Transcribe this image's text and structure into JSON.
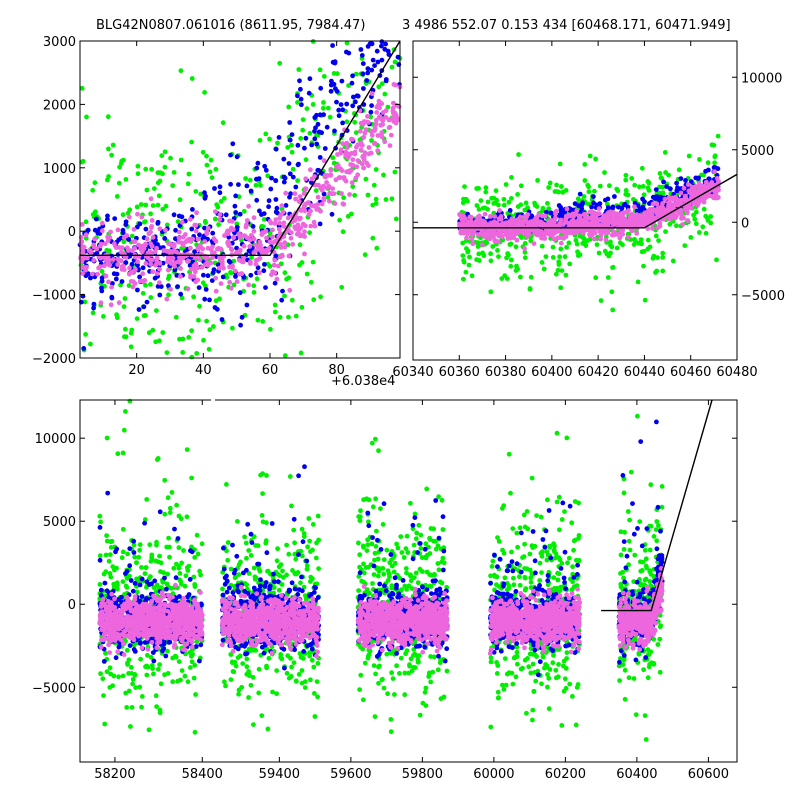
{
  "panel_left": {
    "title": "BLG42N0807.061016 (8611.95, 7984.47)",
    "offset_label": "+6.038e4"
  },
  "panel_right": {
    "title": "3 4986 552.07 0.153 434 [60468.171, 60471.949]"
  },
  "colors": {
    "blue": "#0000ee",
    "green": "#00ee00",
    "pink": "#ee66dd",
    "model": "#000000"
  },
  "chart_data": [
    {
      "type": "scatter",
      "panel": "top-left zoom",
      "x_offset": 60380,
      "xlim": [
        3,
        99
      ],
      "ylim": [
        -2000,
        3000
      ],
      "xticks": [
        20,
        40,
        60,
        80
      ],
      "yticks": [
        -2000,
        -1000,
        0,
        1000,
        2000,
        3000
      ],
      "series": [
        {
          "color": "blue",
          "description": "blue band points"
        },
        {
          "color": "green",
          "description": "green band points"
        },
        {
          "color": "pink",
          "description": "pink band points"
        }
      ],
      "model_line": {
        "x": [
          3,
          60,
          99
        ],
        "y": [
          -380,
          -380,
          3000
        ]
      }
    },
    {
      "type": "scatter",
      "panel": "top-right",
      "xlim": [
        60340,
        60480
      ],
      "ylim": [
        -9500,
        12500
      ],
      "xticks": [
        60340,
        60360,
        60380,
        60400,
        60420,
        60440,
        60460,
        60480
      ],
      "yticks": [
        -5000,
        0,
        5000,
        10000
      ],
      "model_line": {
        "x": [
          60340,
          60440,
          60480
        ],
        "y": [
          -380,
          -380,
          3300
        ]
      }
    },
    {
      "type": "scatter",
      "panel": "bottom full light curve",
      "xlim": [
        58120,
        60680
      ],
      "ylim": [
        -9500,
        12300
      ],
      "xticks": [
        58200,
        58400,
        59400,
        59600,
        59800,
        60000,
        60200,
        60400,
        60600
      ],
      "yticks": [
        -5000,
        0,
        5000,
        10000
      ],
      "seasons": [
        [
          58165,
          58400
        ],
        [
          59240,
          59510
        ],
        [
          59620,
          59870
        ],
        [
          59990,
          60240
        ],
        [
          60350,
          60471
        ]
      ],
      "model_line": {
        "x": [
          60300,
          60440,
          60610
        ],
        "y": [
          -380,
          -380,
          12300
        ]
      }
    }
  ]
}
